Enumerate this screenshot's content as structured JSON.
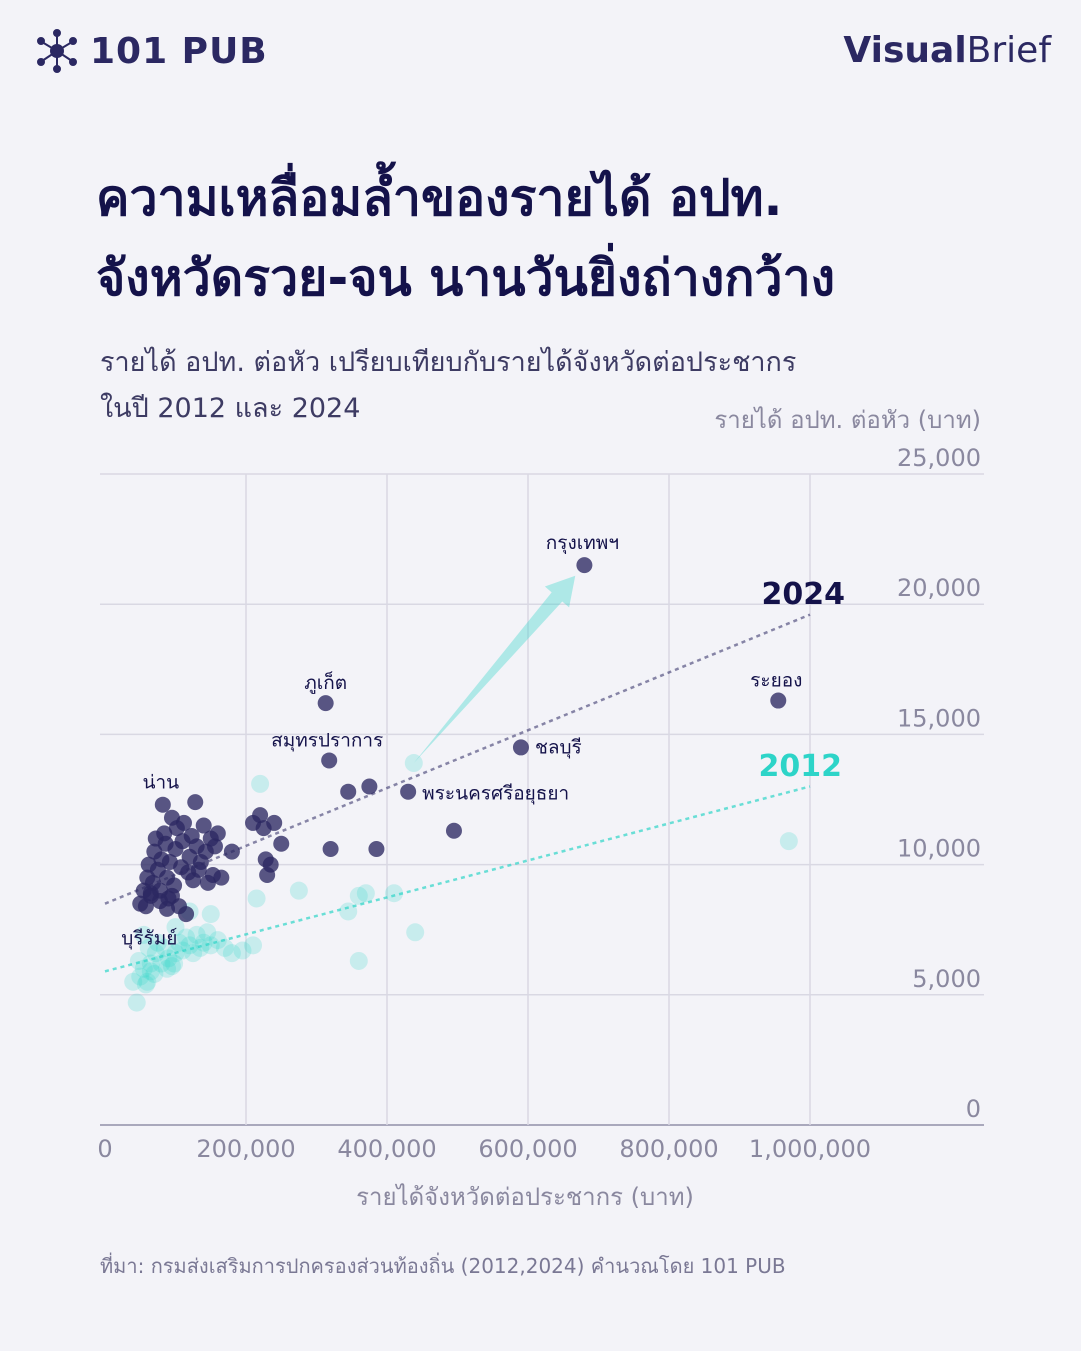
{
  "brand": {
    "left_logo_text": "101 PUB",
    "right_logo_bold": "Visual",
    "right_logo_regular": "Brief",
    "accent_color": "#2b2862"
  },
  "header": {
    "title_line1": "ความเหลื่อมล้ำของรายได้ อปท.",
    "title_line2": "จังหวัดรวย-จน นานวันยิ่งถ่างกว้าง",
    "subtitle_line1": "รายได้ อปท. ต่อหัว เปรียบเทียบกับรายได้จังหวัดต่อประชากร",
    "subtitle_line2": "ในปี 2012 และ 2024"
  },
  "chart_data": {
    "type": "scatter",
    "ylabel": "รายได้ อปท. ต่อหัว (บาท)",
    "xlabel": "รายได้จังหวัดต่อประชากร (บาท)",
    "xlim": [
      0,
      1250000
    ],
    "ylim": [
      0,
      25000
    ],
    "x_ticks": [
      0,
      200000,
      400000,
      600000,
      800000,
      1000000
    ],
    "x_tick_labels": [
      "0",
      "200,000",
      "400,000",
      "600,000",
      "800,000",
      "1,000,000"
    ],
    "y_ticks": [
      0,
      5000,
      10000,
      15000,
      20000,
      25000
    ],
    "y_tick_labels": [
      "0",
      "5,000",
      "10,000",
      "15,000",
      "20,000",
      "25,000"
    ],
    "grid": true,
    "series": [
      {
        "name": "2012",
        "color": "#2dd4c8",
        "points": [
          [
            45,
            4700
          ],
          [
            50,
            5700
          ],
          [
            55,
            6000
          ],
          [
            60,
            5500
          ],
          [
            65,
            6200
          ],
          [
            70,
            5800
          ],
          [
            48,
            6300
          ],
          [
            58,
            5400
          ],
          [
            72,
            6600
          ],
          [
            80,
            6200
          ],
          [
            85,
            6800
          ],
          [
            90,
            6400
          ],
          [
            95,
            6100
          ],
          [
            100,
            6600
          ],
          [
            105,
            7000
          ],
          [
            110,
            6700
          ],
          [
            115,
            7200
          ],
          [
            120,
            6900
          ],
          [
            125,
            6600
          ],
          [
            130,
            7300
          ],
          [
            135,
            6800
          ],
          [
            140,
            7000
          ],
          [
            145,
            7400
          ],
          [
            150,
            6900
          ],
          [
            160,
            7100
          ],
          [
            170,
            6800
          ],
          [
            180,
            6600
          ],
          [
            195,
            6700
          ],
          [
            210,
            6900
          ],
          [
            40,
            5500
          ],
          [
            55,
            7300
          ],
          [
            75,
            7000
          ],
          [
            88,
            6000
          ],
          [
            98,
            6200
          ],
          [
            120,
            8200
          ],
          [
            150,
            8100
          ],
          [
            215,
            8700
          ],
          [
            275,
            9000
          ],
          [
            345,
            8200
          ],
          [
            360,
            8800
          ],
          [
            370,
            8900
          ],
          [
            410,
            8900
          ],
          [
            360,
            6300
          ],
          [
            440,
            7400
          ],
          [
            220,
            13100
          ],
          [
            438,
            13900
          ],
          [
            970,
            10900
          ],
          [
            62,
            6800
          ],
          [
            100,
            7600
          ],
          [
            65,
            5900
          ]
        ],
        "trend": [
          [
            0,
            5900
          ],
          [
            1000000,
            13000
          ]
        ]
      },
      {
        "name": "2024",
        "color": "#2b2862",
        "points": [
          [
            50,
            8500
          ],
          [
            55,
            9000
          ],
          [
            60,
            9500
          ],
          [
            62,
            10000
          ],
          [
            65,
            8800
          ],
          [
            68,
            9300
          ],
          [
            70,
            10500
          ],
          [
            72,
            11000
          ],
          [
            75,
            9800
          ],
          [
            78,
            8600
          ],
          [
            80,
            10200
          ],
          [
            82,
            12300
          ],
          [
            84,
            11200
          ],
          [
            86,
            10800
          ],
          [
            88,
            9500
          ],
          [
            90,
            8700
          ],
          [
            92,
            10100
          ],
          [
            95,
            11800
          ],
          [
            98,
            9200
          ],
          [
            100,
            10600
          ],
          [
            102,
            11400
          ],
          [
            105,
            8400
          ],
          [
            108,
            9900
          ],
          [
            110,
            10900
          ],
          [
            112,
            11600
          ],
          [
            115,
            8100
          ],
          [
            118,
            9700
          ],
          [
            120,
            10300
          ],
          [
            123,
            11100
          ],
          [
            125,
            9400
          ],
          [
            128,
            12400
          ],
          [
            130,
            10700
          ],
          [
            133,
            9800
          ],
          [
            136,
            10100
          ],
          [
            140,
            11500
          ],
          [
            143,
            10500
          ],
          [
            146,
            9300
          ],
          [
            150,
            11000
          ],
          [
            153,
            9600
          ],
          [
            156,
            10700
          ],
          [
            160,
            11200
          ],
          [
            165,
            9500
          ],
          [
            180,
            10500
          ],
          [
            210,
            11600
          ],
          [
            220,
            11900
          ],
          [
            225,
            11400
          ],
          [
            228,
            10200
          ],
          [
            230,
            9600
          ],
          [
            235,
            10000
          ],
          [
            240,
            11600
          ],
          [
            250,
            10800
          ],
          [
            313,
            16200
          ],
          [
            318,
            14000
          ],
          [
            320,
            10600
          ],
          [
            345,
            12800
          ],
          [
            375,
            13000
          ],
          [
            385,
            10600
          ],
          [
            430,
            12800
          ],
          [
            495,
            11300
          ],
          [
            590,
            14500
          ],
          [
            680,
            21500
          ],
          [
            955,
            16300
          ],
          [
            88,
            8300
          ],
          [
            95,
            8800
          ],
          [
            78,
            9000
          ],
          [
            65,
            8900
          ],
          [
            58,
            8400
          ]
        ],
        "trend": [
          [
            0,
            8500
          ],
          [
            1000000,
            19600
          ]
        ]
      }
    ],
    "annotations": [
      {
        "label": "กรุงเทพฯ",
        "x": 680000,
        "y": 21500
      },
      {
        "label": "ภูเก็ต",
        "x": 313000,
        "y": 16200
      },
      {
        "label": "สมุทรปราการ",
        "x": 318000,
        "y": 14000
      },
      {
        "label": "ชลบุรี",
        "x": 590000,
        "y": 14500
      },
      {
        "label": "ระยอง",
        "x": 955000,
        "y": 16300
      },
      {
        "label": "พระนครศรีอยุธยา",
        "x": 430000,
        "y": 12800
      },
      {
        "label": "น่าน",
        "x": 82000,
        "y": 12300
      },
      {
        "label": "บุรีรัมย์",
        "x": 60000,
        "y": 7000
      }
    ],
    "series_labels": {
      "2024": "2024",
      "2012": "2012"
    }
  },
  "source": "ที่มา: กรมส่งเสริมการปกครองส่วนท้องถิ่น (2012,2024) คำนวณโดย 101 PUB"
}
